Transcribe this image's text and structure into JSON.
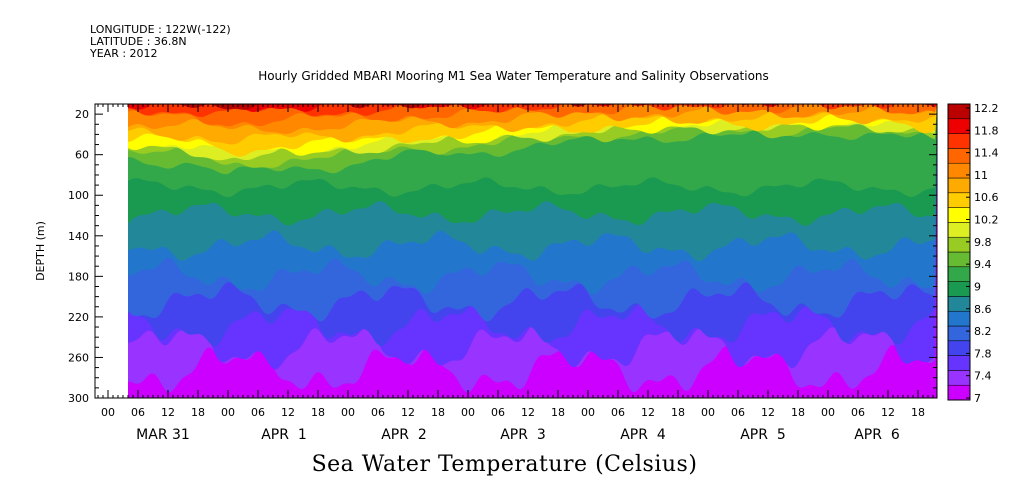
{
  "header": {
    "longitude": "LONGITUDE : 122W(-122)",
    "latitude": "LATITUDE : 36.8N",
    "year": "YEAR : 2012",
    "title": "Hourly Gridded MBARI Mooring M1 Sea Water Temperature and Salinity Observations"
  },
  "footer": {
    "variable_title": "Sea Water Temperature (Celsius)"
  },
  "chart_data": {
    "type": "heatmap",
    "title": "Hourly Gridded MBARI Mooring M1 Sea Water Temperature and Salinity Observations",
    "subtitle": "Sea Water Temperature (Celsius)",
    "xlabel": "",
    "ylabel": "DEPTH (m)",
    "y_reversed": true,
    "ylim": [
      300,
      10
    ],
    "y_ticks": [
      20,
      60,
      100,
      140,
      180,
      220,
      260,
      300
    ],
    "x_hour_labels": [
      "00",
      "06",
      "12",
      "18",
      "00",
      "06",
      "12",
      "18",
      "00",
      "06",
      "12",
      "18",
      "00",
      "06",
      "12",
      "18",
      "00",
      "06",
      "12",
      "18",
      "00",
      "06",
      "12",
      "18",
      "00",
      "06",
      "12",
      "18",
      "00",
      "06",
      "12",
      "18"
    ],
    "x_date_labels": [
      "MAR 31",
      "APR  1",
      "APR  2",
      "APR  3",
      "APR  4",
      "APR  5",
      "APR  6"
    ],
    "data_start_hour": 6,
    "levels": [
      "7",
      "7.4",
      "7.8",
      "8.2",
      "8.6",
      "9",
      "9.4",
      "9.8",
      "10.2",
      "10.6",
      "11",
      "11.4",
      "11.8",
      "12.2"
    ],
    "colors": [
      "#cc00ff",
      "#9933ff",
      "#6633ff",
      "#4444ee",
      "#3366dd",
      "#2277cc",
      "#228899",
      "#1a9950",
      "#33a84a",
      "#66bb33",
      "#99cc22",
      "#ddee22",
      "#ffff00",
      "#ffcc00",
      "#ffaa00",
      "#ff8800",
      "#ff6600",
      "#ff3300",
      "#ee0000",
      "#bb0000"
    ],
    "thermocline_depth_m": [
      {
        "day_hour": 6,
        "depth": 48
      },
      {
        "day_hour": 18,
        "depth": 52
      },
      {
        "day_hour": 24,
        "depth": 60
      },
      {
        "day_hour": 36,
        "depth": 55
      },
      {
        "day_hour": 48,
        "depth": 52
      },
      {
        "day_hour": 60,
        "depth": 45
      },
      {
        "day_hour": 72,
        "depth": 44
      },
      {
        "day_hour": 84,
        "depth": 38
      },
      {
        "day_hour": 96,
        "depth": 35
      },
      {
        "day_hour": 108,
        "depth": 32
      },
      {
        "day_hour": 120,
        "depth": 30
      },
      {
        "day_hour": 132,
        "depth": 32
      },
      {
        "day_hour": 144,
        "depth": 28
      },
      {
        "day_hour": 156,
        "depth": 30
      },
      {
        "day_hour": 168,
        "depth": 36
      }
    ],
    "surface_temperature_c": "11.4 to 12.2 near surface",
    "bottom_temperature_c": "about 7.0 at 300 m"
  }
}
